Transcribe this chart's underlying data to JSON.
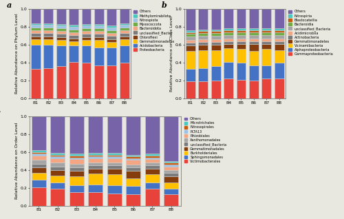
{
  "categories": [
    "B1",
    "B2",
    "B3",
    "B4",
    "B5",
    "B6",
    "B7",
    "B8"
  ],
  "phylum_labels": [
    "Proteobacteria",
    "Acidobacteria",
    "Gemmatimonadetes",
    "Chloroflexi",
    "unclassified_Bacter",
    "Bacteroidota",
    "Myxococcota",
    "Nitrospiota",
    "Methylomirabilota",
    "Others"
  ],
  "phylum_colors": [
    "#e8433a",
    "#4472c4",
    "#ffc000",
    "#843c0c",
    "#7b7b7b",
    "#f4a582",
    "#70ad47",
    "#9dc3e6",
    "#4dc8be",
    "#7764a8"
  ],
  "phylum_data": {
    "B1": [
      0.33,
      0.27,
      0.06,
      0.03,
      0.04,
      0.03,
      0.03,
      0.03,
      0.02,
      0.16
    ],
    "B2": [
      0.34,
      0.26,
      0.06,
      0.03,
      0.04,
      0.03,
      0.03,
      0.03,
      0.02,
      0.16
    ],
    "B3": [
      0.36,
      0.23,
      0.06,
      0.03,
      0.04,
      0.03,
      0.03,
      0.03,
      0.02,
      0.17
    ],
    "B4": [
      0.41,
      0.18,
      0.05,
      0.03,
      0.04,
      0.03,
      0.03,
      0.03,
      0.02,
      0.18
    ],
    "B5": [
      0.4,
      0.19,
      0.06,
      0.03,
      0.04,
      0.03,
      0.03,
      0.03,
      0.02,
      0.17
    ],
    "B6": [
      0.37,
      0.2,
      0.08,
      0.03,
      0.04,
      0.03,
      0.03,
      0.03,
      0.02,
      0.17
    ],
    "B7": [
      0.37,
      0.2,
      0.06,
      0.03,
      0.04,
      0.03,
      0.03,
      0.03,
      0.02,
      0.19
    ],
    "B8": [
      0.4,
      0.19,
      0.07,
      0.03,
      0.04,
      0.03,
      0.03,
      0.03,
      0.02,
      0.16
    ]
  },
  "class_labels": [
    "Gammaproteobacteria",
    "Alphaproteobacteria",
    "Vicinamibacteria",
    "Gemmatimonadetes",
    "Actinobacteria",
    "Acidimicrobiia",
    "unclassified_Bacteria",
    "Bacteroidia",
    "Blastocatellia",
    "Nitrospiria",
    "Others"
  ],
  "class_colors": [
    "#e8433a",
    "#4472c4",
    "#ffc000",
    "#843c0c",
    "#7b7b7b",
    "#f4a582",
    "#a5a5a5",
    "#70ad47",
    "#c55a11",
    "#4dc8be",
    "#7764a8"
  ],
  "class_data": {
    "B1": [
      0.19,
      0.14,
      0.2,
      0.06,
      0.03,
      0.03,
      0.04,
      0.03,
      0.02,
      0.02,
      0.24
    ],
    "B2": [
      0.19,
      0.15,
      0.2,
      0.06,
      0.03,
      0.03,
      0.04,
      0.03,
      0.02,
      0.02,
      0.23
    ],
    "B3": [
      0.2,
      0.16,
      0.18,
      0.06,
      0.03,
      0.03,
      0.04,
      0.03,
      0.02,
      0.02,
      0.23
    ],
    "B4": [
      0.22,
      0.19,
      0.15,
      0.05,
      0.03,
      0.03,
      0.04,
      0.03,
      0.02,
      0.02,
      0.22
    ],
    "B5": [
      0.21,
      0.19,
      0.15,
      0.06,
      0.03,
      0.03,
      0.04,
      0.03,
      0.02,
      0.02,
      0.22
    ],
    "B6": [
      0.2,
      0.17,
      0.16,
      0.08,
      0.03,
      0.03,
      0.04,
      0.03,
      0.02,
      0.02,
      0.22
    ],
    "B7": [
      0.22,
      0.15,
      0.18,
      0.06,
      0.03,
      0.03,
      0.04,
      0.03,
      0.02,
      0.02,
      0.22
    ],
    "B8": [
      0.22,
      0.18,
      0.14,
      0.07,
      0.03,
      0.03,
      0.04,
      0.03,
      0.02,
      0.02,
      0.22
    ]
  },
  "order_labels": [
    "Victimobacterales",
    "Sphingomonadales",
    "Burkholderiales",
    "Gemmatimonadales",
    "unclassified_Bacteria",
    "Xanthomonadales",
    "Rhizobiales",
    "PLTA13",
    "Nitrosopirales",
    "Microtrichales",
    "Others"
  ],
  "order_colors": [
    "#e8433a",
    "#4472c4",
    "#ffc000",
    "#843c0c",
    "#7b7b7b",
    "#a5a5a5",
    "#f4a582",
    "#9dc3e6",
    "#c55a11",
    "#4dc8be",
    "#7764a8"
  ],
  "order_data": {
    "B1": [
      0.21,
      0.08,
      0.08,
      0.06,
      0.04,
      0.04,
      0.05,
      0.02,
      0.02,
      0.02,
      0.38
    ],
    "B2": [
      0.19,
      0.07,
      0.08,
      0.06,
      0.04,
      0.04,
      0.05,
      0.02,
      0.02,
      0.02,
      0.41
    ],
    "B3": [
      0.15,
      0.08,
      0.1,
      0.06,
      0.04,
      0.04,
      0.05,
      0.02,
      0.02,
      0.02,
      0.42
    ],
    "B4": [
      0.15,
      0.09,
      0.12,
      0.05,
      0.04,
      0.03,
      0.05,
      0.02,
      0.02,
      0.02,
      0.41
    ],
    "B5": [
      0.14,
      0.09,
      0.12,
      0.06,
      0.04,
      0.03,
      0.05,
      0.02,
      0.02,
      0.02,
      0.41
    ],
    "B6": [
      0.13,
      0.09,
      0.09,
      0.08,
      0.04,
      0.03,
      0.05,
      0.02,
      0.02,
      0.02,
      0.43
    ],
    "B7": [
      0.19,
      0.07,
      0.09,
      0.06,
      0.04,
      0.03,
      0.04,
      0.02,
      0.02,
      0.02,
      0.42
    ],
    "B8": [
      0.13,
      0.06,
      0.07,
      0.07,
      0.04,
      0.03,
      0.04,
      0.02,
      0.02,
      0.02,
      0.5
    ]
  },
  "bg_color": "#e8e8e0"
}
